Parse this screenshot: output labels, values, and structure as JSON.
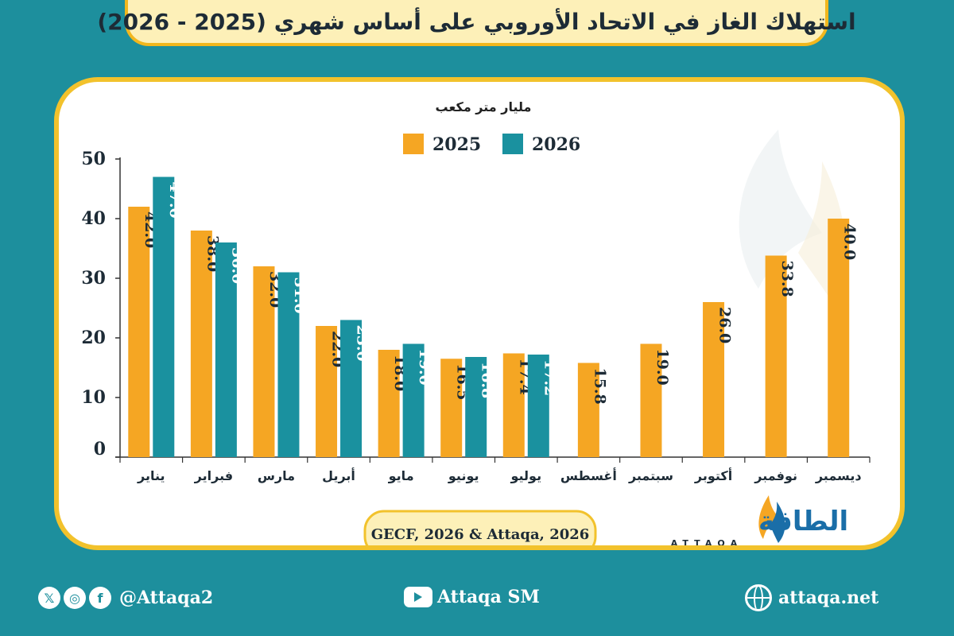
{
  "title": "استهلاك الغاز في الاتحاد الأوروبي على أساس شهري (2025 - 2026)",
  "source": "GECF, 2026 & Attaqa, 2026",
  "logo": {
    "ar": "الطاقة",
    "en": "ATTAQA"
  },
  "colors": {
    "2025": "#f5a623",
    "2026": "#1a919f",
    "accent": "#f2c22c",
    "background": "#1d8f9d"
  },
  "chart_data": {
    "type": "bar",
    "ylabel": "مليار متر مكعب",
    "ylim": [
      0,
      50
    ],
    "yticks": [
      0,
      10,
      20,
      30,
      40,
      50
    ],
    "legend_position": "top-center",
    "grid": false,
    "categories": [
      "يناير",
      "فبراير",
      "مارس",
      "أبريل",
      "مايو",
      "يونيو",
      "يوليو",
      "أغسطس",
      "سبتمبر",
      "أكتوبر",
      "نوفمبر",
      "ديسمبر"
    ],
    "series": [
      {
        "name": "2025",
        "values": [
          42.0,
          38.0,
          32.0,
          22.0,
          18.0,
          16.5,
          17.4,
          15.8,
          19.0,
          26.0,
          33.8,
          40.0
        ]
      },
      {
        "name": "2026",
        "values": [
          47.0,
          36.0,
          31.0,
          23.0,
          19.0,
          16.8,
          17.2,
          null,
          null,
          null,
          null,
          null
        ]
      }
    ]
  },
  "footer": {
    "social_handle": "@Attaqa2",
    "youtube": "Attaqa SM",
    "website": "attaqa.net",
    "icons": [
      "x-icon",
      "instagram-icon",
      "facebook-icon",
      "youtube-icon",
      "globe-icon"
    ]
  }
}
